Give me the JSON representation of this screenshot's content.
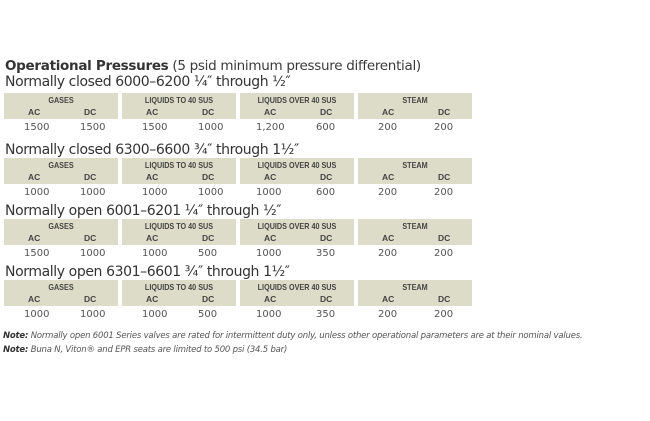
{
  "title": {
    "bold": "Operational Pressures",
    "rest": " (5 psid minimum pressure differential)"
  },
  "headers": {
    "gases": "GASES",
    "liq_to": "LIQUIDS TO 40 SUS",
    "liq_over": "LIQUIDS OVER 40 SUS",
    "steam": "STEAM",
    "ac": "AC",
    "dc": "DC"
  },
  "sections": [
    {
      "label": "Normally closed 6000–6200 ¼″ through ½″",
      "values": [
        "1500",
        "1500",
        "1500",
        "1000",
        "1,200",
        "600",
        "200",
        "200"
      ]
    },
    {
      "label": "Normally closed 6300–6600 ¾″ through 1½″",
      "values": [
        "1000",
        "1000",
        "1000",
        "1000",
        "1000",
        "600",
        "200",
        "200"
      ]
    },
    {
      "label": "Normally open 6001–6201 ¼″ through ½″",
      "values": [
        "1500",
        "1000",
        "1000",
        "500",
        "1000",
        "350",
        "200",
        "200"
      ]
    },
    {
      "label": "Normally open 6301–6601 ¾″ through 1½″",
      "values": [
        "1000",
        "1000",
        "1000",
        "500",
        "1000",
        "350",
        "200",
        "200"
      ]
    }
  ],
  "notes": [
    {
      "label": "Note:",
      "text": " Normally open 6001 Series valves are rated for intermittent duty only, unless other operational parameters are at their nominal values."
    },
    {
      "label": "Note:",
      "text": " Buna N, Viton® and EPR seats are limited to 500 psi (34.5 bar)"
    }
  ]
}
